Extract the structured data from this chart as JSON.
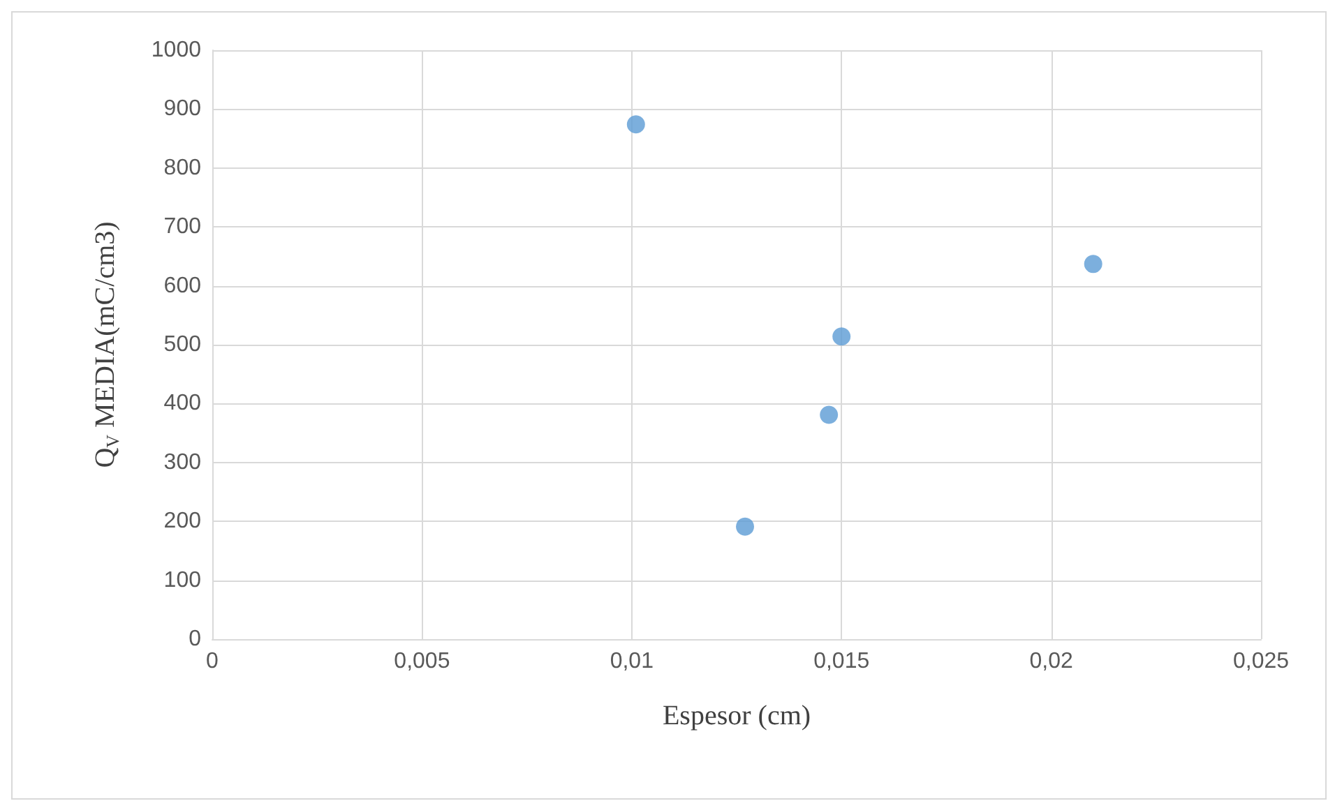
{
  "chart_data": {
    "type": "scatter",
    "xlabel": "Espesor (cm)",
    "ylabel": "Q$_{V}$ MEDIA(mC/cm3)",
    "x": [
      0.0101,
      0.0127,
      0.0147,
      0.015,
      0.021
    ],
    "series": [
      {
        "color": "#5b9bd5",
        "values": [
          874,
          191,
          381,
          514,
          637
        ]
      }
    ],
    "xlim": [
      0,
      0.025
    ],
    "xticks": [
      {
        "value": 0,
        "label": "0"
      },
      {
        "value": 0.005,
        "label": "0,005"
      },
      {
        "value": 0.01,
        "label": "0,01"
      },
      {
        "value": 0.015,
        "label": "0,015"
      },
      {
        "value": 0.02,
        "label": "0,02"
      },
      {
        "value": 0.025,
        "label": "0,025"
      }
    ],
    "ylim": [
      0,
      1000
    ],
    "yticks": [
      0,
      100,
      200,
      300,
      400,
      500,
      600,
      700,
      800,
      900,
      1000
    ],
    "grid": true,
    "marker": "circle"
  }
}
